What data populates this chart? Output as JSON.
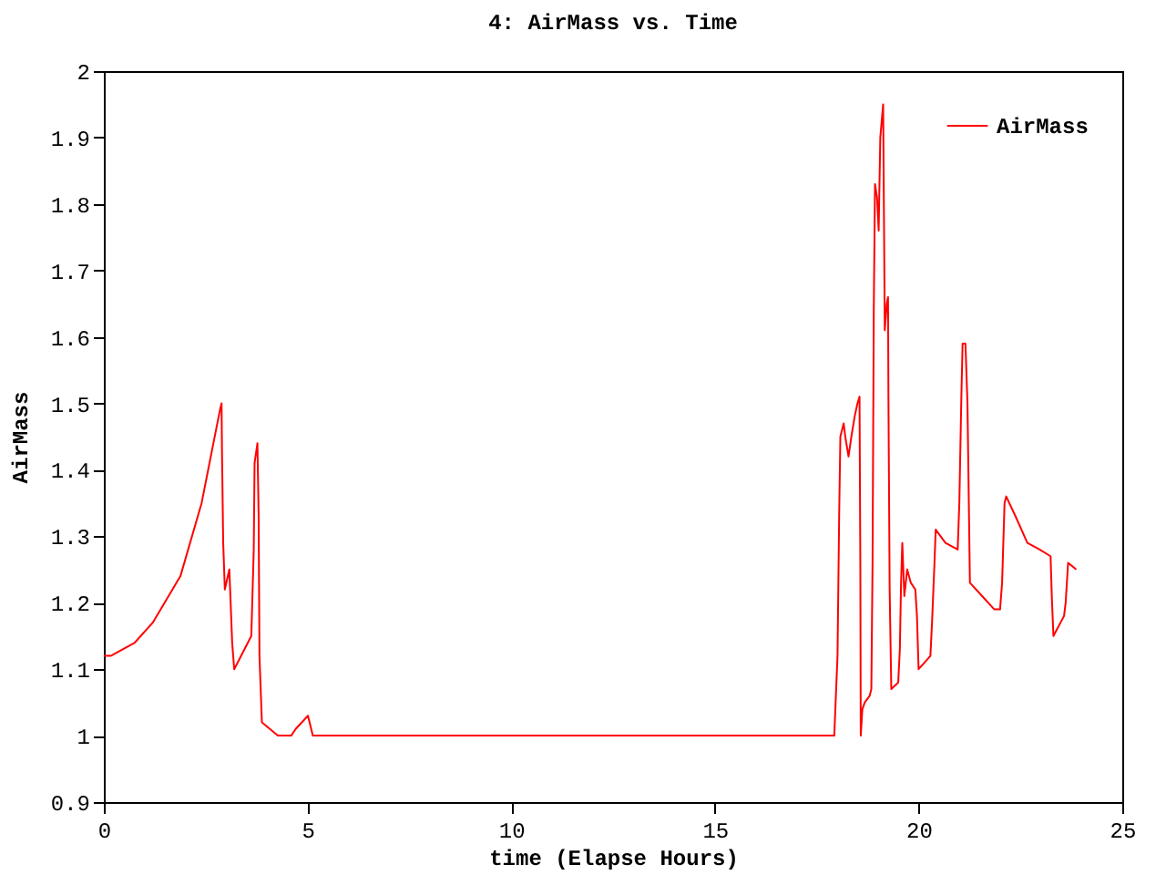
{
  "chart_data": {
    "type": "line",
    "title": "4: AirMass vs. Time",
    "xlabel": "time (Elapse Hours)",
    "ylabel": "AirMass",
    "xlim": [
      0,
      25
    ],
    "xticks": [
      0,
      5,
      10,
      15,
      20,
      25
    ],
    "ylim": [
      0.9,
      2
    ],
    "yticks": [
      0.9,
      1,
      1.1,
      1.2,
      1.3,
      1.4,
      1.5,
      1.6,
      1.7,
      1.8,
      1.9,
      2
    ],
    "grid": false,
    "legend": "top right",
    "marker": "none",
    "line_style": "solid",
    "series": [
      {
        "name": "AirMass",
        "color": "#ff0000",
        "x": [
          0,
          0.17,
          0.76,
          1.2,
          1.88,
          2.4,
          2.85,
          2.89,
          2.9,
          2.93,
          2.97,
          3.08,
          3.1,
          3.15,
          3.2,
          3.62,
          3.68,
          3.7,
          3.77,
          3.8,
          3.82,
          3.88,
          4.27,
          4.6,
          4.71,
          5.01,
          5.13,
          17.93,
          18.01,
          18.05,
          18.08,
          18.16,
          18.2,
          18.28,
          18.35,
          18.43,
          18.5,
          18.55,
          18.57,
          18.58,
          18.62,
          18.68,
          18.8,
          18.84,
          18.87,
          18.9,
          18.93,
          18.98,
          19.02,
          19.06,
          19.13,
          19.15,
          19.17,
          19.22,
          19.25,
          19.26,
          19.29,
          19.33,
          19.5,
          19.54,
          19.57,
          19.6,
          19.65,
          19.72,
          19.81,
          19.92,
          19.96,
          20.0,
          20.29,
          20.33,
          20.39,
          20.42,
          20.66,
          20.96,
          21.0,
          21.05,
          21.08,
          21.15,
          21.2,
          21.24,
          21.26,
          21.56,
          21.86,
          22.0,
          22.05,
          22.11,
          22.15,
          22.38,
          22.67,
          22.97,
          23.24,
          23.27,
          23.31,
          23.57,
          23.61,
          23.67,
          23.87
        ],
        "values": [
          1.12,
          1.12,
          1.14,
          1.17,
          1.24,
          1.35,
          1.49,
          1.5,
          1.43,
          1.29,
          1.22,
          1.25,
          1.22,
          1.14,
          1.1,
          1.15,
          1.28,
          1.41,
          1.44,
          1.33,
          1.12,
          1.02,
          1.0,
          1.0,
          1.01,
          1.03,
          1.0,
          1.0,
          1.12,
          1.33,
          1.45,
          1.47,
          1.45,
          1.42,
          1.45,
          1.48,
          1.5,
          1.51,
          1.26,
          1.0,
          1.04,
          1.05,
          1.06,
          1.07,
          1.26,
          1.64,
          1.83,
          1.81,
          1.76,
          1.9,
          1.95,
          1.78,
          1.61,
          1.65,
          1.66,
          1.51,
          1.22,
          1.07,
          1.08,
          1.13,
          1.23,
          1.29,
          1.21,
          1.25,
          1.23,
          1.22,
          1.18,
          1.1,
          1.12,
          1.17,
          1.26,
          1.31,
          1.29,
          1.28,
          1.35,
          1.51,
          1.59,
          1.59,
          1.5,
          1.32,
          1.23,
          1.21,
          1.19,
          1.19,
          1.23,
          1.35,
          1.36,
          1.33,
          1.29,
          1.28,
          1.27,
          1.21,
          1.15,
          1.18,
          1.2,
          1.26,
          1.25
        ]
      }
    ]
  }
}
